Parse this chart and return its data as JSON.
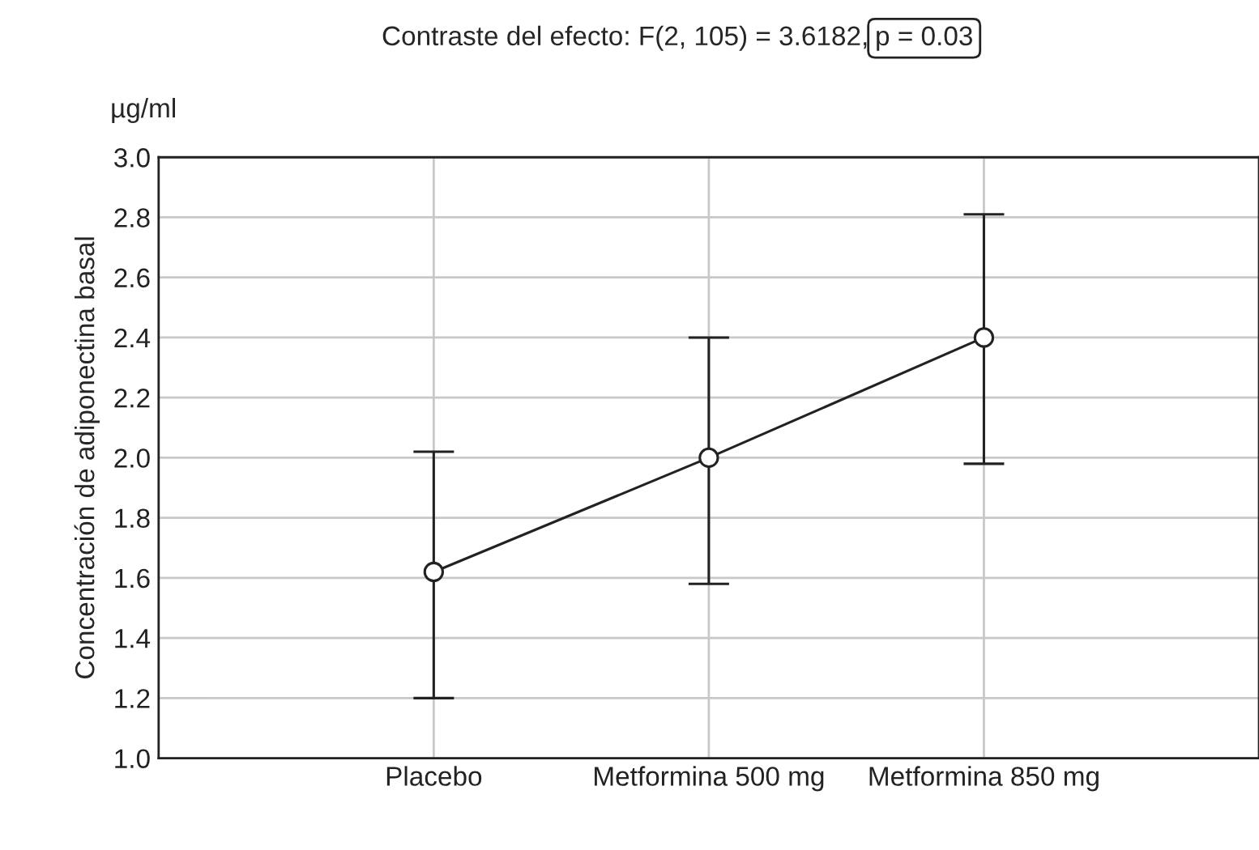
{
  "chart_data": {
    "type": "line",
    "title": "Contraste del efecto: F(2, 105) = 3.6182,",
    "ylabel": "Concentración de adiponectina basal",
    "annotations": [
      "p = 0.03",
      "µg/ml"
    ],
    "categories": [
      "Placebo",
      "Metformina 500 mg",
      "Metformina 850 mg"
    ],
    "series": [
      {
        "color": "#222222",
        "values": [
          1.62,
          2.0,
          2.4
        ],
        "errors": [
          [
            1.2,
            2.02
          ],
          [
            1.58,
            2.4
          ],
          [
            1.98,
            2.81
          ]
        ]
      }
    ],
    "ylim": [
      1.0,
      3.0
    ],
    "yticks": [
      {
        "value": 1.0,
        "label": "1.0"
      },
      1.2,
      1.4,
      1.6,
      1.8,
      {
        "value": 2.0,
        "label": "2.0"
      },
      2.2,
      2.4,
      2.6,
      2.8,
      {
        "value": 3.0,
        "label": "3.0"
      }
    ],
    "grid": true,
    "marker": "circle",
    "line_style": "solid"
  }
}
